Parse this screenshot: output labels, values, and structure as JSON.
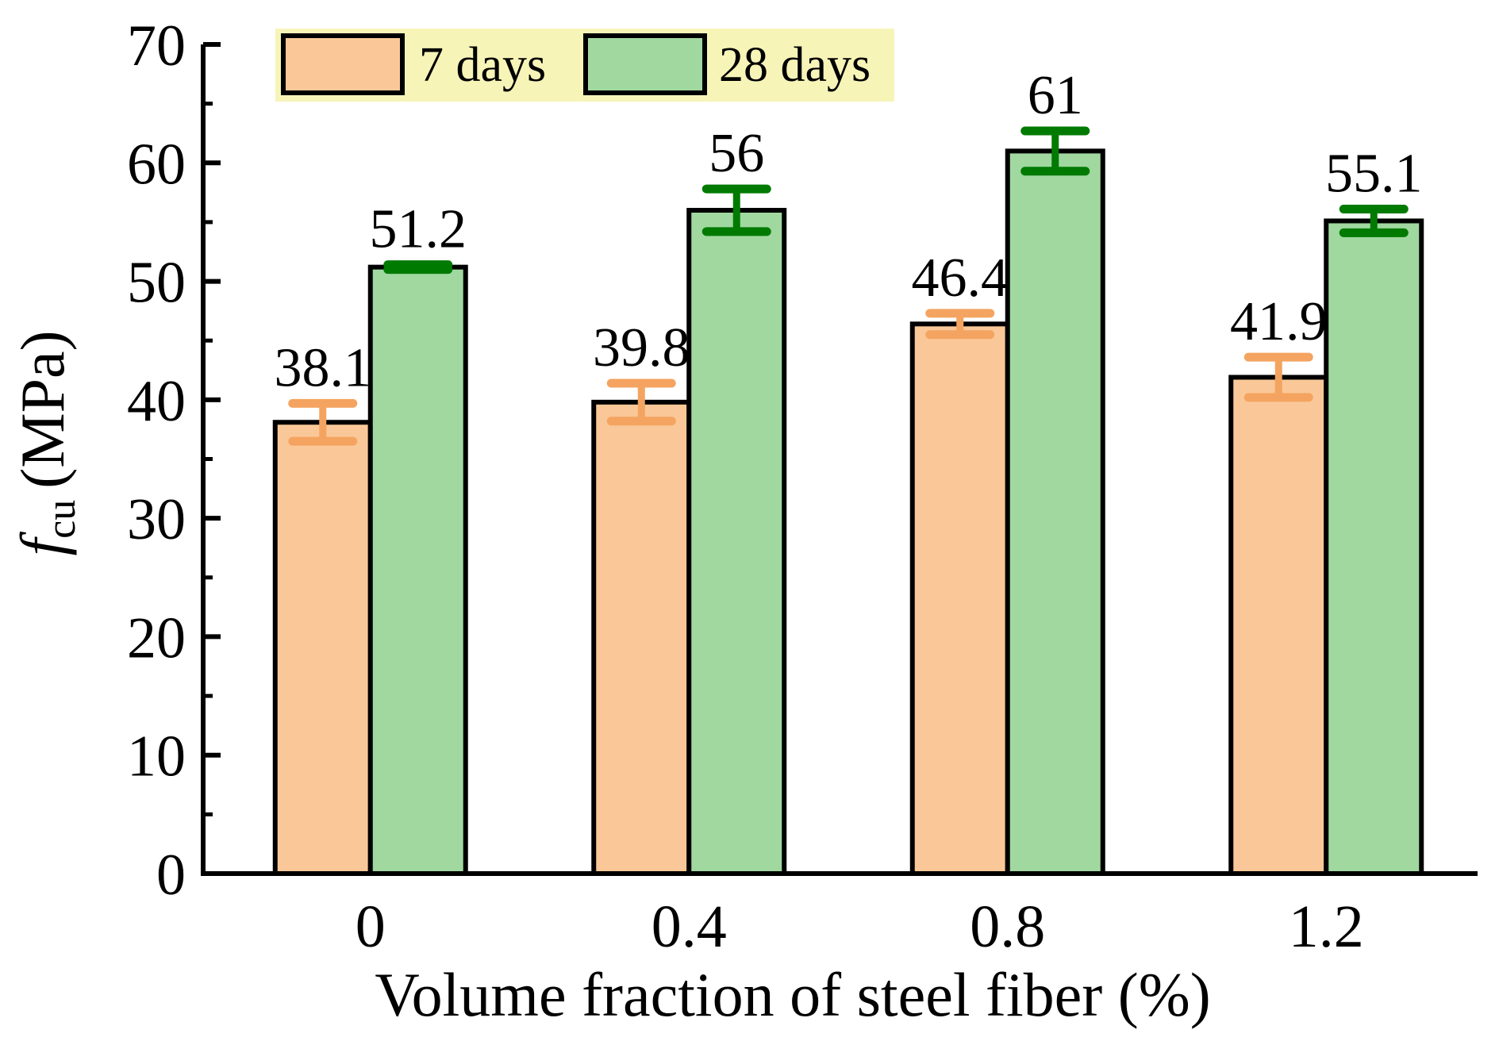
{
  "chart_data": {
    "type": "bar",
    "xlabel": "Volume fraction of steel fiber (%)",
    "ylabel": {
      "symbol": "f",
      "subscript": "cu",
      "unit": "(MPa)"
    },
    "categories": [
      "0",
      "0.4",
      "0.8",
      "1.2"
    ],
    "ylim": [
      0,
      70
    ],
    "yticks": [
      "0",
      "10",
      "20",
      "30",
      "40",
      "50",
      "60",
      "70"
    ],
    "ytick_values": [
      0,
      10,
      20,
      30,
      40,
      50,
      60,
      70
    ],
    "grid": false,
    "legend_position": "top-left",
    "series": [
      {
        "name": "7 days",
        "values": [
          38.1,
          39.8,
          46.4,
          41.9
        ],
        "labels": [
          "38.1",
          "39.8",
          "46.4",
          "41.9"
        ],
        "error": [
          1.6,
          1.6,
          0.9,
          1.7
        ],
        "color": "#fac898",
        "error_color": "#f4a460"
      },
      {
        "name": "28 days",
        "values": [
          51.2,
          56,
          61,
          55.1
        ],
        "labels": [
          "51.2",
          "56",
          "61",
          "55.1"
        ],
        "error": [
          0.2,
          1.8,
          1.7,
          1.0
        ],
        "color": "#a0d8a0",
        "error_color": "#007a00"
      }
    ],
    "legend_background": "#f7f4b8"
  }
}
